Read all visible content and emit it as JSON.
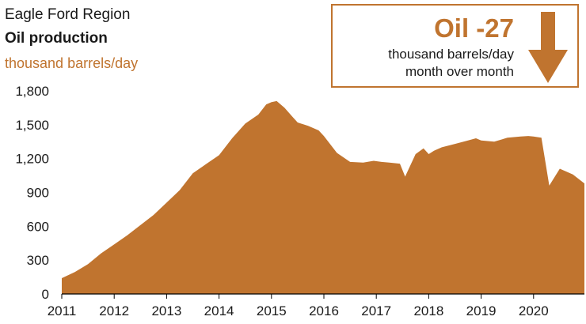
{
  "header": {
    "region": "Eagle Ford Region",
    "title": "Oil production",
    "units": "thousand barrels/day"
  },
  "callout": {
    "headline": "Oil -27",
    "line1": "thousand barrels/day",
    "line2": "month over month",
    "icon": "down-arrow-icon"
  },
  "colors": {
    "accent": "#c0742f",
    "text": "#1a1a1a"
  },
  "chart_data": {
    "type": "area",
    "title": "Oil production",
    "ylabel": "thousand barrels/day",
    "xlabel": "",
    "ylim": [
      0,
      1800
    ],
    "xlim": [
      2011.0,
      2020.97
    ],
    "yticks": [
      0,
      300,
      600,
      900,
      1200,
      1500,
      1800
    ],
    "ytick_labels": [
      "0",
      "300",
      "600",
      "900",
      "1,200",
      "1,500",
      "1,800"
    ],
    "xtick_labels": [
      "2011",
      "2012",
      "2013",
      "2014",
      "2015",
      "2016",
      "2017",
      "2018",
      "2019",
      "2020"
    ],
    "grid": false,
    "legend": "none",
    "series": [
      {
        "x": [
          2011.0,
          2011.25,
          2011.5,
          2011.75,
          2012.0,
          2012.25,
          2012.5,
          2012.75,
          2013.0,
          2013.25,
          2013.5,
          2013.75,
          2014.0,
          2014.25,
          2014.5,
          2014.75,
          2014.9,
          2015.0,
          2015.1,
          2015.25,
          2015.4,
          2015.5,
          2015.7,
          2015.9,
          2016.0,
          2016.25,
          2016.5,
          2016.75,
          2016.95,
          2017.1,
          2017.25,
          2017.45,
          2017.55,
          2017.75,
          2017.9,
          2018.0,
          2018.1,
          2018.25,
          2018.5,
          2018.75,
          2018.9,
          2019.0,
          2019.25,
          2019.5,
          2019.75,
          2019.9,
          2020.0,
          2020.15,
          2020.3,
          2020.5,
          2020.75,
          2020.97
        ],
        "values": [
          140,
          195,
          265,
          360,
          440,
          520,
          610,
          700,
          810,
          920,
          1070,
          1150,
          1230,
          1380,
          1510,
          1590,
          1680,
          1700,
          1710,
          1650,
          1570,
          1520,
          1490,
          1450,
          1400,
          1250,
          1170,
          1165,
          1180,
          1170,
          1165,
          1155,
          1040,
          1240,
          1290,
          1240,
          1270,
          1300,
          1330,
          1360,
          1380,
          1360,
          1350,
          1385,
          1395,
          1400,
          1395,
          1385,
          960,
          1110,
          1060,
          980
        ]
      }
    ]
  }
}
